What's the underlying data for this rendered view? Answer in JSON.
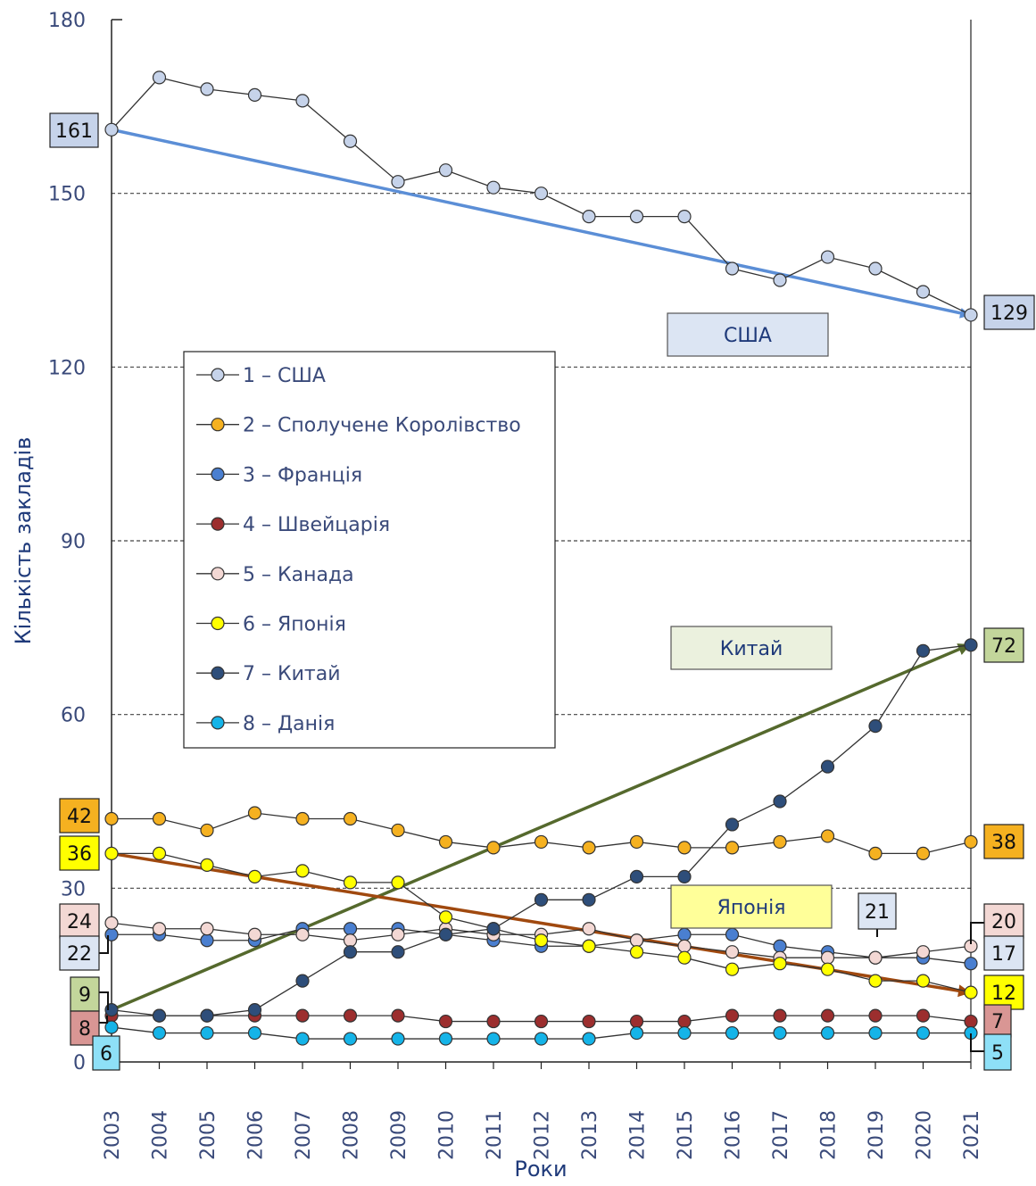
{
  "chart_data": {
    "type": "line",
    "xlabel": "Роки",
    "ylabel": "Кількість закладів",
    "ylim": [
      0,
      180
    ],
    "yticks": [
      "0",
      "30",
      "60",
      "90",
      "120",
      "150",
      "180"
    ],
    "categories": [
      "2003",
      "2004",
      "2005",
      "2006",
      "2007",
      "2008",
      "2009",
      "2010",
      "2011",
      "2012",
      "2013",
      "2014",
      "2015",
      "2016",
      "2017",
      "2018",
      "2019",
      "2020",
      "2021"
    ],
    "grid": "horizontal-dashed",
    "legend_position": "center-left",
    "series": [
      {
        "name": "1 – США",
        "color": "#c6d3ea",
        "values": [
          161,
          170,
          168,
          167,
          166,
          159,
          152,
          154,
          151,
          150,
          146,
          146,
          146,
          137,
          135,
          139,
          137,
          133,
          129
        ]
      },
      {
        "name": "2 – Сполучене Королівство",
        "color": "#f5b120",
        "values": [
          42,
          42,
          40,
          43,
          42,
          42,
          40,
          38,
          37,
          38,
          37,
          38,
          37,
          37,
          38,
          39,
          36,
          36,
          38
        ]
      },
      {
        "name": "3 – Франція",
        "color": "#4a7fd0",
        "values": [
          22,
          22,
          21,
          21,
          23,
          23,
          23,
          22,
          21,
          20,
          20,
          21,
          22,
          22,
          20,
          19,
          18,
          18,
          17
        ]
      },
      {
        "name": "4 – Швейцарія",
        "color": "#9c2e2e",
        "values": [
          8,
          8,
          8,
          8,
          8,
          8,
          8,
          7,
          7,
          7,
          7,
          7,
          7,
          8,
          8,
          8,
          8,
          8,
          7
        ]
      },
      {
        "name": "5 – Канада",
        "color": "#f3d8d4",
        "values": [
          24,
          23,
          23,
          22,
          22,
          21,
          22,
          23,
          22,
          22,
          23,
          21,
          20,
          19,
          18,
          18,
          18,
          19,
          20
        ]
      },
      {
        "name": "6 – Японія",
        "color": "#ffff00",
        "values": [
          36,
          36,
          34,
          32,
          33,
          31,
          31,
          25,
          23,
          21,
          20,
          19,
          18,
          16,
          17,
          16,
          14,
          14,
          12
        ]
      },
      {
        "name": "7 – Китай",
        "color": "#2e4e7a",
        "values": [
          9,
          8,
          8,
          9,
          14,
          19,
          19,
          22,
          23,
          28,
          28,
          32,
          32,
          41,
          45,
          51,
          58,
          71,
          72
        ]
      },
      {
        "name": "8 – Данія",
        "color": "#15b4e8",
        "values": [
          6,
          5,
          5,
          5,
          4,
          4,
          4,
          4,
          4,
          4,
          4,
          5,
          5,
          5,
          5,
          5,
          5,
          5,
          5
        ]
      }
    ],
    "trend_lines": [
      {
        "series": "1 – США",
        "from": [
          "2003",
          161
        ],
        "to": [
          "2021",
          129
        ],
        "color": "#5b8ed6"
      },
      {
        "series": "7 – Китай",
        "from": [
          "2003",
          9
        ],
        "to": [
          "2021",
          72
        ],
        "color": "#55692d"
      },
      {
        "series": "6 – Японія",
        "from": [
          "2003",
          36
        ],
        "to": [
          "2021",
          12
        ],
        "color": "#a0490f"
      }
    ],
    "value_labels": [
      {
        "text": "161",
        "bg": "#c6d3ea"
      },
      {
        "text": "129",
        "bg": "#c6d3ea"
      },
      {
        "text": "42",
        "bg": "#f5b120"
      },
      {
        "text": "38",
        "bg": "#f5b120"
      },
      {
        "text": "36",
        "bg": "#ffff00"
      },
      {
        "text": "12",
        "bg": "#ffff00"
      },
      {
        "text": "24",
        "bg": "#f3d8d4"
      },
      {
        "text": "20",
        "bg": "#f3d8d4"
      },
      {
        "text": "22",
        "bg": "#dce5f3"
      },
      {
        "text": "17",
        "bg": "#dce5f3"
      },
      {
        "text": "21",
        "bg": "#dce5f3"
      },
      {
        "text": "9",
        "bg": "#c3d69b"
      },
      {
        "text": "72",
        "bg": "#c3d69b"
      },
      {
        "text": "8",
        "bg": "#d99694"
      },
      {
        "text": "7",
        "bg": "#d99694"
      },
      {
        "text": "6",
        "bg": "#8ee0f7"
      },
      {
        "text": "5",
        "bg": "#8ee0f7"
      }
    ],
    "annotations": [
      {
        "text": "США",
        "bg": "#dce5f3"
      },
      {
        "text": "Китай",
        "bg": "#ebf1de"
      },
      {
        "text": "Японія",
        "bg": "#ffff99"
      }
    ]
  }
}
